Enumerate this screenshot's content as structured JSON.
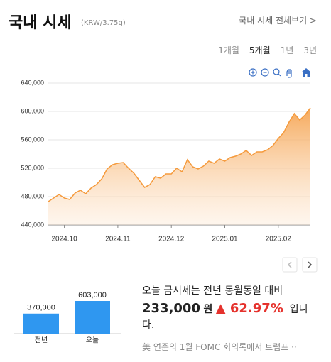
{
  "header": {
    "title": "국내 시세",
    "unit": "(KRW/3.75g)",
    "link": "국내 시세 전체보기 >"
  },
  "tabs": {
    "items": [
      "1개월",
      "5개월",
      "1년",
      "3년"
    ],
    "selected": 1
  },
  "chart_data": [
    {
      "type": "area",
      "color": "#f59a3c",
      "grid": true,
      "categories": [
        null,
        null,
        null,
        "2024.10",
        null,
        null,
        null,
        null,
        null,
        null,
        null,
        null,
        null,
        "2024.11",
        null,
        null,
        null,
        null,
        null,
        null,
        null,
        null,
        null,
        "2024.12",
        null,
        null,
        null,
        null,
        null,
        null,
        null,
        null,
        null,
        "2025.01",
        null,
        null,
        null,
        null,
        null,
        null,
        null,
        null,
        null,
        "2025.02",
        null,
        null,
        null,
        null,
        null,
        null
      ],
      "values": [
        473000,
        478000,
        483000,
        478000,
        476000,
        485000,
        489000,
        484000,
        492000,
        497000,
        505000,
        519000,
        525000,
        527000,
        528000,
        520000,
        513000,
        503000,
        493000,
        497000,
        508000,
        506000,
        512000,
        512000,
        520000,
        515000,
        532000,
        522000,
        519000,
        523000,
        530000,
        527000,
        533000,
        530000,
        535000,
        537000,
        540000,
        545000,
        538000,
        543000,
        543000,
        546000,
        552000,
        562000,
        570000,
        585000,
        597000,
        588000,
        595000,
        605000
      ],
      "ylim": [
        440000,
        640000
      ],
      "yticks": [
        {
          "value": 440000,
          "label": "440,000"
        },
        {
          "value": 480000,
          "label": "480,000"
        },
        {
          "value": 520000,
          "label": "520,000"
        },
        {
          "value": 560000,
          "label": "560,000"
        },
        {
          "value": 600000,
          "label": "600,000"
        },
        {
          "value": 640000,
          "label": "640,000"
        }
      ]
    },
    {
      "type": "bar",
      "color": "#2f97f0",
      "categories": [
        "전년",
        "오늘"
      ],
      "values": [
        370000,
        603000
      ],
      "value_labels": [
        "370,000",
        "603,000"
      ]
    }
  ],
  "summary": {
    "lead": "오늘 금시세는 전년 동월동일 대비",
    "diff": "233,000",
    "currency": "원",
    "rate": "▲ 62.97%",
    "tail": "입니다."
  },
  "news": "美 연준의 1월 FOMC 회의록에서 트럼프 ··"
}
